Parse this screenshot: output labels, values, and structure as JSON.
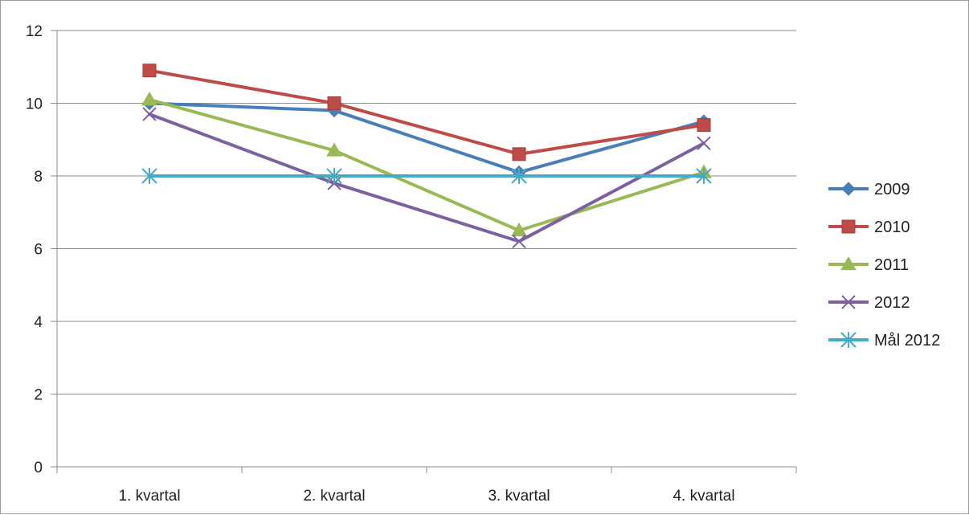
{
  "chart_data": {
    "type": "line",
    "title": "",
    "xlabel": "",
    "ylabel": "",
    "categories": [
      "1. kvartal",
      "2. kvartal",
      "3. kvartal",
      "4. kvartal"
    ],
    "ylim": [
      0,
      12
    ],
    "yticks": [
      0,
      2,
      4,
      6,
      8,
      10,
      12
    ],
    "grid": "horizontal",
    "legend_position": "right",
    "series": [
      {
        "name": "2009",
        "values": [
          10.0,
          9.8,
          8.1,
          9.5
        ],
        "color": "#4a7ebb",
        "marker": "diamond"
      },
      {
        "name": "2010",
        "values": [
          10.9,
          10.0,
          8.6,
          9.4
        ],
        "color": "#be4b48",
        "marker": "square"
      },
      {
        "name": "2011",
        "values": [
          10.1,
          8.7,
          6.5,
          8.1
        ],
        "color": "#98b954",
        "marker": "triangle"
      },
      {
        "name": "2012",
        "values": [
          9.7,
          7.8,
          6.2,
          8.9
        ],
        "color": "#7d60a0",
        "marker": "x"
      },
      {
        "name": "Mål 2012",
        "values": [
          8,
          8,
          8,
          8
        ],
        "color": "#46aac5",
        "marker": "star"
      }
    ]
  }
}
